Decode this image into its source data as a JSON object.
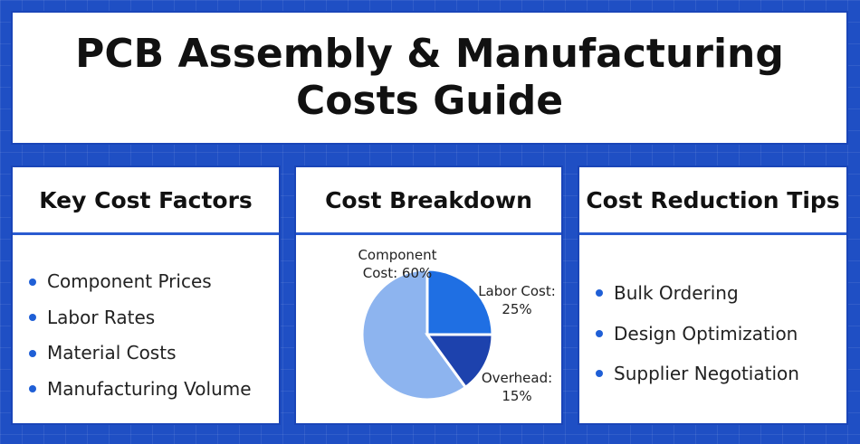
{
  "header": {
    "title": "PCB Assembly & Manufacturing Costs Guide"
  },
  "panels": [
    {
      "title": "Key Cost Factors",
      "items": [
        "Component Prices",
        "Labor Rates",
        "Material Costs",
        "Manufacturing Volume"
      ]
    },
    {
      "title": "Cost Breakdown"
    },
    {
      "title": "Cost Reduction Tips",
      "items": [
        "Bulk Ordering",
        "Design Optimization",
        "Supplier Negotiation"
      ]
    }
  ],
  "chart_data": {
    "type": "pie",
    "categories": [
      "Component Cost: 60%",
      "Labor Cost: 25%",
      "Overhead: 15%"
    ],
    "values": [
      60,
      25,
      15
    ],
    "colors": [
      "#8db4ef",
      "#1f6fe3",
      "#1d42ad"
    ]
  }
}
